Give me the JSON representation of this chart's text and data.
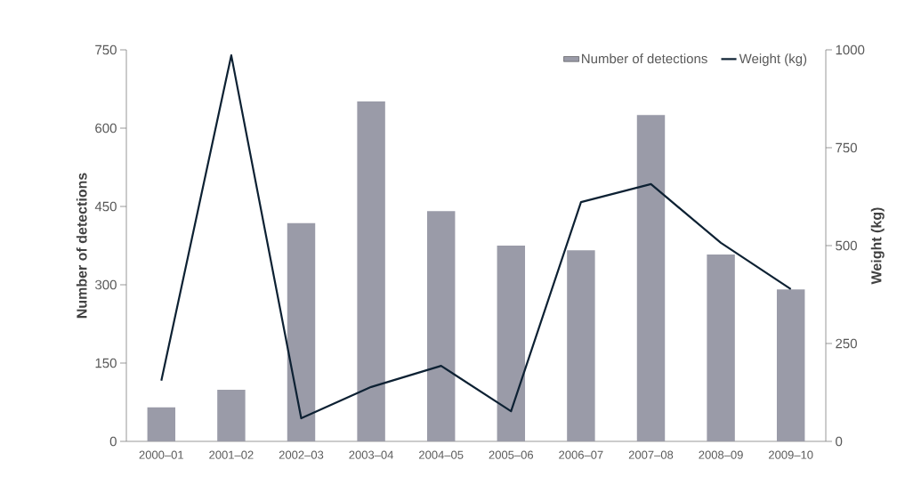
{
  "chart_data": {
    "type": "bar",
    "categories": [
      "2000–01",
      "2001–02",
      "2002–03",
      "2003–04",
      "2004–05",
      "2005–06",
      "2006–07",
      "2007–08",
      "2008–09",
      "2009–10"
    ],
    "ylabel": "Number of detections",
    "y2label": "Weight (kg)",
    "ylim": [
      0,
      750
    ],
    "yticks": [
      0,
      150,
      300,
      450,
      600,
      750
    ],
    "y2lim": [
      0,
      1000
    ],
    "y2ticks": [
      0,
      250,
      500,
      750,
      1000
    ],
    "legend": "top right",
    "grid": false,
    "series": [
      {
        "name": "Number of detections",
        "color": "#9a9ba8",
        "values": [
          65,
          99,
          418,
          651,
          441,
          375,
          366,
          625,
          358,
          291
        ]
      },
      {
        "name": "Weight (kg)",
        "type": "line",
        "axis": "y2",
        "color": "#0d2133",
        "values": [
          155,
          986,
          59,
          139,
          193,
          77,
          611,
          657,
          507,
          389
        ]
      }
    ]
  }
}
